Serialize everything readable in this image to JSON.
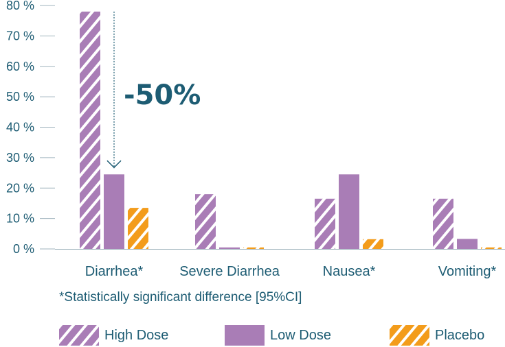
{
  "colors": {
    "high_dose": "#a97db6",
    "low_dose": "#a97db6",
    "placebo": "#f39c1b",
    "axis_text": "#1d5c73",
    "category_text": "#1d5c73",
    "annotation": "#1d5c73",
    "axis_line": "#9fb3bd"
  },
  "annotation": {
    "text": "-50%"
  },
  "footnote": "*Statistically significant difference [95%CI]",
  "legend": [
    {
      "label": "High Dose",
      "pattern": "hatched",
      "color": "#a97db6"
    },
    {
      "label": "Low Dose",
      "pattern": "solid",
      "color": "#a97db6"
    },
    {
      "label": "Placebo",
      "pattern": "hatched",
      "color": "#f39c1b"
    }
  ],
  "chart_data": {
    "type": "bar",
    "title": "",
    "xlabel": "",
    "ylabel": "",
    "ylim": [
      0,
      80
    ],
    "yticks": [
      0,
      10,
      20,
      30,
      40,
      50,
      60,
      70,
      80
    ],
    "ytick_labels": [
      "0 %",
      "10 %",
      "20 %",
      "30 %",
      "40 %",
      "50 %",
      "60 %",
      "70 %",
      "80 %"
    ],
    "categories": [
      "Diarrhea*",
      "Severe Diarrhea",
      "Nausea*",
      "Vomiting*"
    ],
    "series": [
      {
        "name": "High Dose",
        "values": [
          78,
          18,
          16.5,
          16.5
        ]
      },
      {
        "name": "Low Dose",
        "values": [
          24.5,
          0.5,
          24.5,
          3.3
        ]
      },
      {
        "name": "Placebo",
        "values": [
          13.5,
          0.5,
          3.2,
          0.5
        ]
      }
    ],
    "grid": false,
    "legend_position": "bottom"
  }
}
